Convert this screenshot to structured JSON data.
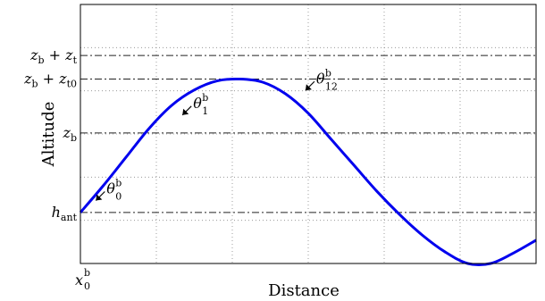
{
  "chart_data": {
    "type": "line",
    "title": "",
    "xlabel": "Distance",
    "ylabel": "Altitude",
    "xlim": [
      0,
      1
    ],
    "ylim": [
      0,
      1
    ],
    "grid": true,
    "x_tick_labels": [
      {
        "main": "x",
        "sup": "b",
        "sub": "0",
        "x": 0.0
      }
    ],
    "y_tick_labels": [
      {
        "main": "h",
        "sub": "ant",
        "y": 0.197
      },
      {
        "main": "z",
        "sub": "b",
        "y": 0.504
      },
      {
        "main": "z",
        "sub": "b",
        "plus": " + ",
        "main2": "z",
        "sub2": "t0",
        "y": 0.712
      },
      {
        "main": "z",
        "sub": "b",
        "plus": " + ",
        "main2": "z",
        "sub2": "t",
        "y": 0.803
      }
    ],
    "reference_lines": [
      0.197,
      0.504,
      0.712,
      0.803
    ],
    "series": [
      {
        "color": "#0000ee",
        "x": [
          0.0,
          0.05,
          0.1,
          0.15,
          0.2,
          0.25,
          0.3,
          0.35,
          0.4,
          0.45,
          0.5,
          0.55,
          0.6,
          0.65,
          0.7,
          0.75,
          0.8,
          0.85,
          0.9,
          0.95,
          1.0
        ],
        "y": [
          0.197,
          0.3,
          0.41,
          0.52,
          0.61,
          0.67,
          0.705,
          0.712,
          0.7,
          0.655,
          0.58,
          0.48,
          0.38,
          0.28,
          0.19,
          0.11,
          0.045,
          0.0,
          0.0,
          0.04,
          0.09
        ]
      }
    ],
    "annotations": [
      {
        "main": "θ",
        "sup": "b",
        "sub": "0",
        "x": 0.03,
        "y": 0.25
      },
      {
        "main": "θ",
        "sup": "b",
        "sub": "1",
        "x": 0.22,
        "y": 0.58
      },
      {
        "main": "θ",
        "sup": "b",
        "sub": "12",
        "x": 0.49,
        "y": 0.675
      }
    ]
  }
}
